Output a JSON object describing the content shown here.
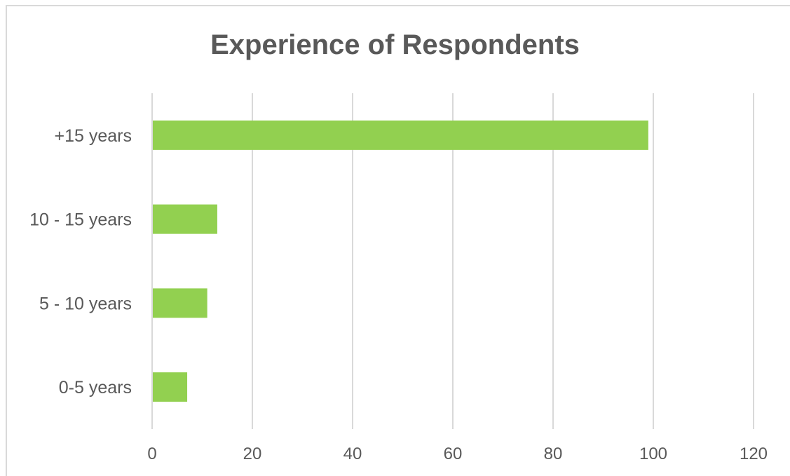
{
  "chart_data": {
    "type": "bar",
    "orientation": "horizontal",
    "title": "Experience of Respondents",
    "categories": [
      "+15 years",
      "10 - 15 years",
      "5 - 10 years",
      "0-5 years"
    ],
    "values": [
      99,
      13,
      11,
      7
    ],
    "xlim": [
      0,
      120
    ],
    "xticks": [
      "0",
      "20",
      "40",
      "60",
      "80",
      "100",
      "120"
    ],
    "xlabel": "",
    "ylabel": "",
    "grid": true,
    "legend": "none",
    "bar_color": "#92d050",
    "grid_color": "#d9d9d9",
    "text_color": "#595959"
  }
}
